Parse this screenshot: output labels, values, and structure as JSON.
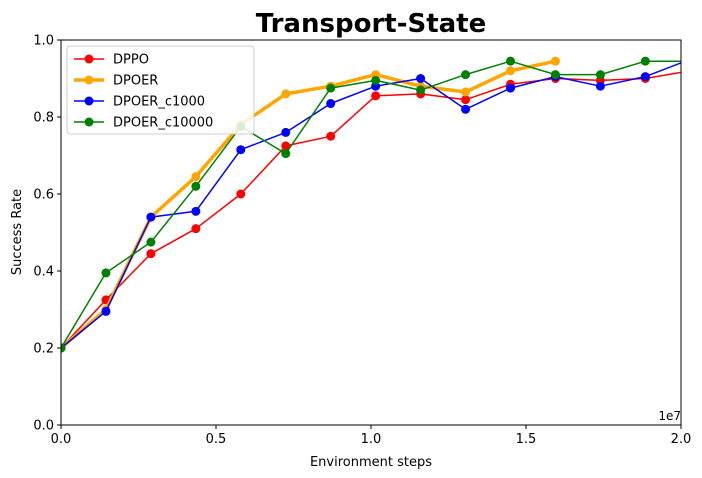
{
  "chart_data": {
    "type": "line",
    "title": "Transport-State",
    "xlabel": "Environment steps",
    "ylabel": "Success Rate",
    "x_offset_label": "1e7",
    "xlim": [
      0,
      20000000
    ],
    "ylim": [
      0,
      1.0
    ],
    "xticks": [
      {
        "value": 0,
        "label": "0.0"
      },
      {
        "value": 5000000,
        "label": "0.5"
      },
      {
        "value": 10000000,
        "label": "1.0"
      },
      {
        "value": 15000000,
        "label": "1.5"
      },
      {
        "value": 20000000,
        "label": "2.0"
      }
    ],
    "yticks": [
      {
        "value": 0.0,
        "label": "0.0"
      },
      {
        "value": 0.2,
        "label": "0.2"
      },
      {
        "value": 0.4,
        "label": "0.4"
      },
      {
        "value": 0.6,
        "label": "0.6"
      },
      {
        "value": 0.8,
        "label": "0.8"
      },
      {
        "value": 1.0,
        "label": "1.0"
      }
    ],
    "grid": false,
    "legend_position": "upper-left",
    "series": [
      {
        "name": "DPPO",
        "color": "#ff0000",
        "linewidth": 1.5,
        "markers": true,
        "x": [
          0,
          1450000,
          2900000,
          4350000,
          5800000,
          7250000,
          8700000,
          10150000,
          11600000,
          13050000,
          14500000,
          15950000,
          17400000,
          18850000,
          20300000
        ],
        "y": [
          0.2,
          0.325,
          0.445,
          0.51,
          0.6,
          0.725,
          0.75,
          0.855,
          0.86,
          0.845,
          0.885,
          0.9,
          0.895,
          0.9,
          0.92
        ]
      },
      {
        "name": "DPOER",
        "color": "#ffa500",
        "linewidth": 3.5,
        "markers": true,
        "x": [
          0,
          1450000,
          2900000,
          4350000,
          5800000,
          7250000,
          8700000,
          10150000,
          11600000,
          13050000,
          14500000,
          15950000
        ],
        "y": [
          0.2,
          0.3,
          0.54,
          0.645,
          0.78,
          0.86,
          0.88,
          0.91,
          0.88,
          0.865,
          0.92,
          0.945
        ]
      },
      {
        "name": "DPOER_c1000",
        "color": "#0000ff",
        "linewidth": 1.5,
        "markers": true,
        "x": [
          0,
          1450000,
          2900000,
          4350000,
          5800000,
          7250000,
          8700000,
          10150000,
          11600000,
          13050000,
          14500000,
          15950000,
          17400000,
          18850000,
          20300000
        ],
        "y": [
          0.2,
          0.295,
          0.54,
          0.555,
          0.715,
          0.76,
          0.835,
          0.88,
          0.9,
          0.82,
          0.875,
          0.905,
          0.88,
          0.905,
          0.95
        ]
      },
      {
        "name": "DPOER_c10000",
        "color": "#008000",
        "linewidth": 1.5,
        "markers": true,
        "x": [
          0,
          1450000,
          2900000,
          4350000,
          5800000,
          7250000,
          8700000,
          10150000,
          11600000,
          13050000,
          14500000,
          15950000,
          17400000,
          18850000,
          20300000
        ],
        "y": [
          0.2,
          0.395,
          0.475,
          0.62,
          0.775,
          0.705,
          0.875,
          0.895,
          0.87,
          0.91,
          0.945,
          0.91,
          0.91,
          0.945,
          0.945
        ]
      }
    ]
  }
}
